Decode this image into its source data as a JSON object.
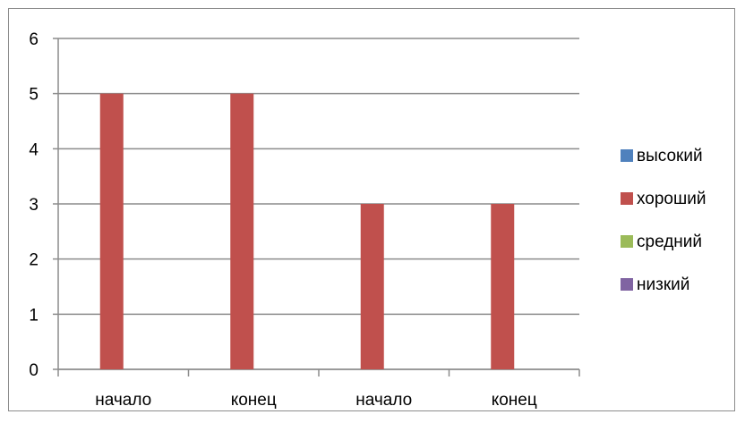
{
  "chart_data": {
    "type": "bar",
    "categories": [
      "начало",
      "конец",
      "начало",
      "конец"
    ],
    "series": [
      {
        "name": "высокий",
        "values": [
          0,
          0,
          0,
          0
        ],
        "color": "#4f81bd"
      },
      {
        "name": "хороший",
        "values": [
          5,
          5,
          3,
          3
        ],
        "color": "#c0504d"
      },
      {
        "name": "средний",
        "values": [
          0,
          0,
          0,
          0
        ],
        "color": "#9bbb59"
      },
      {
        "name": "низкий",
        "values": [
          0,
          0,
          0,
          0
        ],
        "color": "#8064a2"
      }
    ],
    "title": "",
    "xlabel": "",
    "ylabel": "",
    "ylim": [
      0,
      6
    ],
    "yticks": [
      "0",
      "1",
      "2",
      "3",
      "4",
      "5",
      "6"
    ],
    "grid": true,
    "legend_position": "right"
  }
}
